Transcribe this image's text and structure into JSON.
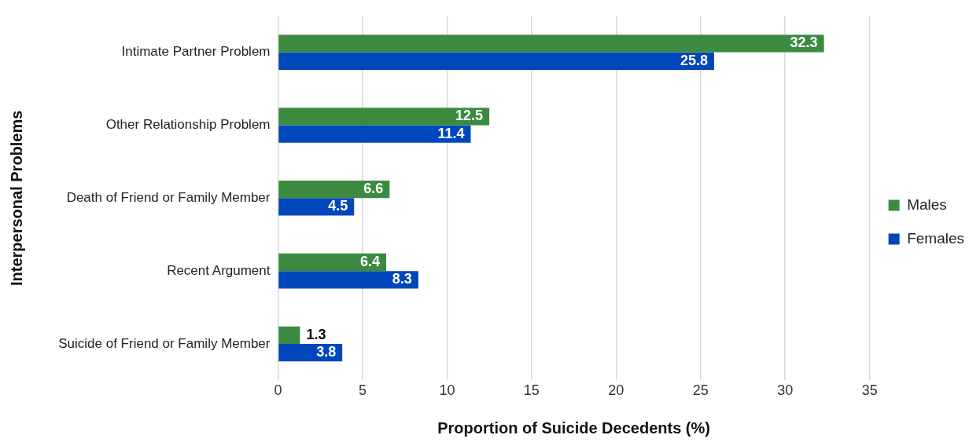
{
  "chart_data": {
    "type": "bar",
    "orientation": "horizontal",
    "xlabel": "Proportion of Suicide Decedents (%)",
    "ylabel": "Interpersonal Problems",
    "categories": [
      "Intimate Partner Problem",
      "Other Relationship Problem",
      "Death of Friend or Family Member",
      "Recent Argument",
      "Suicide of Friend or Family Member"
    ],
    "series": [
      {
        "name": "Males",
        "color": "#3b8a40",
        "values": [
          32.3,
          12.5,
          6.6,
          6.4,
          1.3
        ]
      },
      {
        "name": "Females",
        "color": "#0047bb",
        "values": [
          25.8,
          11.4,
          4.5,
          8.3,
          3.8
        ]
      }
    ],
    "xlim": [
      0,
      35
    ],
    "xticks": [
      0,
      5,
      10,
      15,
      20,
      25,
      30,
      35
    ],
    "grid": "x",
    "legend": "right",
    "data_labels": true
  }
}
